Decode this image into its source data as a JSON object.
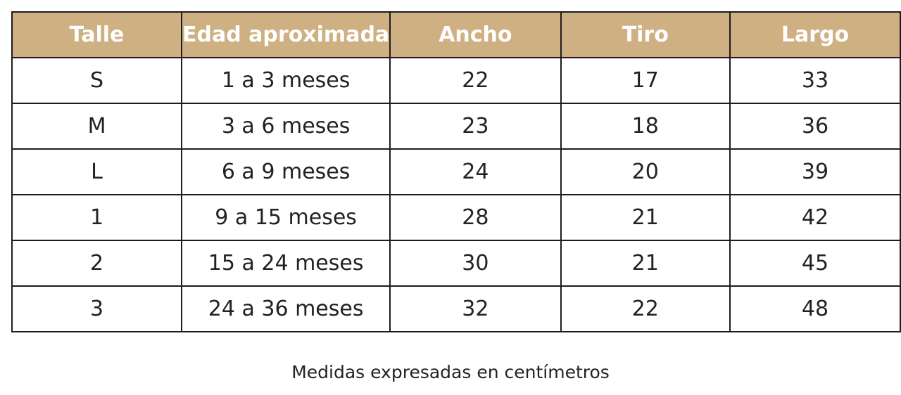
{
  "chart_data": {
    "type": "table",
    "columns": [
      "Talle",
      "Edad aproximada",
      "Ancho",
      "Tiro",
      "Largo"
    ],
    "rows": [
      [
        "S",
        "1 a 3 meses",
        22,
        17,
        33
      ],
      [
        "M",
        "3 a 6 meses",
        23,
        18,
        36
      ],
      [
        "L",
        "6 a 9 meses",
        24,
        20,
        39
      ],
      [
        "1",
        "9 a 15 meses",
        28,
        21,
        42
      ],
      [
        "2",
        "15 a 24 meses",
        30,
        21,
        45
      ],
      [
        "3",
        "24 a 36 meses",
        32,
        22,
        48
      ]
    ],
    "note": "Medidas expresadas en centímetros"
  },
  "colors": {
    "header_bg": "#cfb083",
    "header_text": "#ffffff",
    "border": "#1c1c1c",
    "cell_text": "#222222"
  }
}
